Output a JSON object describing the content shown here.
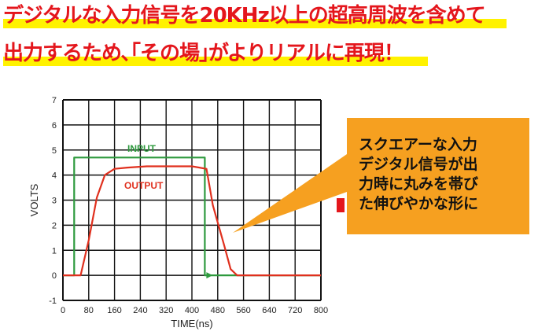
{
  "headline": {
    "line1": "デジタルな入力信号を20KHz以上の超高周波を含めて",
    "line2": "出力するため､｢その場｣がよりリアルに再現！",
    "text_color": "#e4161c",
    "highlight_color": "#fff200"
  },
  "callout": {
    "lines": [
      "スクエアーな入力",
      "デジタル信号が出",
      "力時に丸みを帯び",
      "た伸びやかな形に"
    ],
    "bg_color": "#f6a020"
  },
  "chart_data": {
    "type": "line",
    "xlabel": "TIME(ns)",
    "ylabel": "VOLTS",
    "xlim": [
      0,
      800
    ],
    "ylim": [
      -1,
      7
    ],
    "xticks": [
      0,
      80,
      160,
      240,
      320,
      400,
      480,
      560,
      640,
      720,
      800
    ],
    "yticks": [
      -1,
      0,
      1,
      2,
      3,
      4,
      5,
      6,
      7
    ],
    "grid": true,
    "series": [
      {
        "name": "INPUT",
        "color": "#2e9a3e",
        "x": [
          0,
          35,
          35,
          440,
          440,
          800
        ],
        "y": [
          0,
          0,
          4.7,
          4.7,
          0,
          0
        ]
      },
      {
        "name": "OUTPUT",
        "color": "#e0301e",
        "x": [
          0,
          55,
          80,
          105,
          130,
          160,
          200,
          260,
          330,
          400,
          445,
          465,
          500,
          520,
          540,
          560,
          800
        ],
        "y": [
          0,
          0,
          1.4,
          3.1,
          4.0,
          4.25,
          4.3,
          4.35,
          4.35,
          4.35,
          4.25,
          2.8,
          1.2,
          0.25,
          0,
          0,
          0
        ]
      }
    ]
  }
}
